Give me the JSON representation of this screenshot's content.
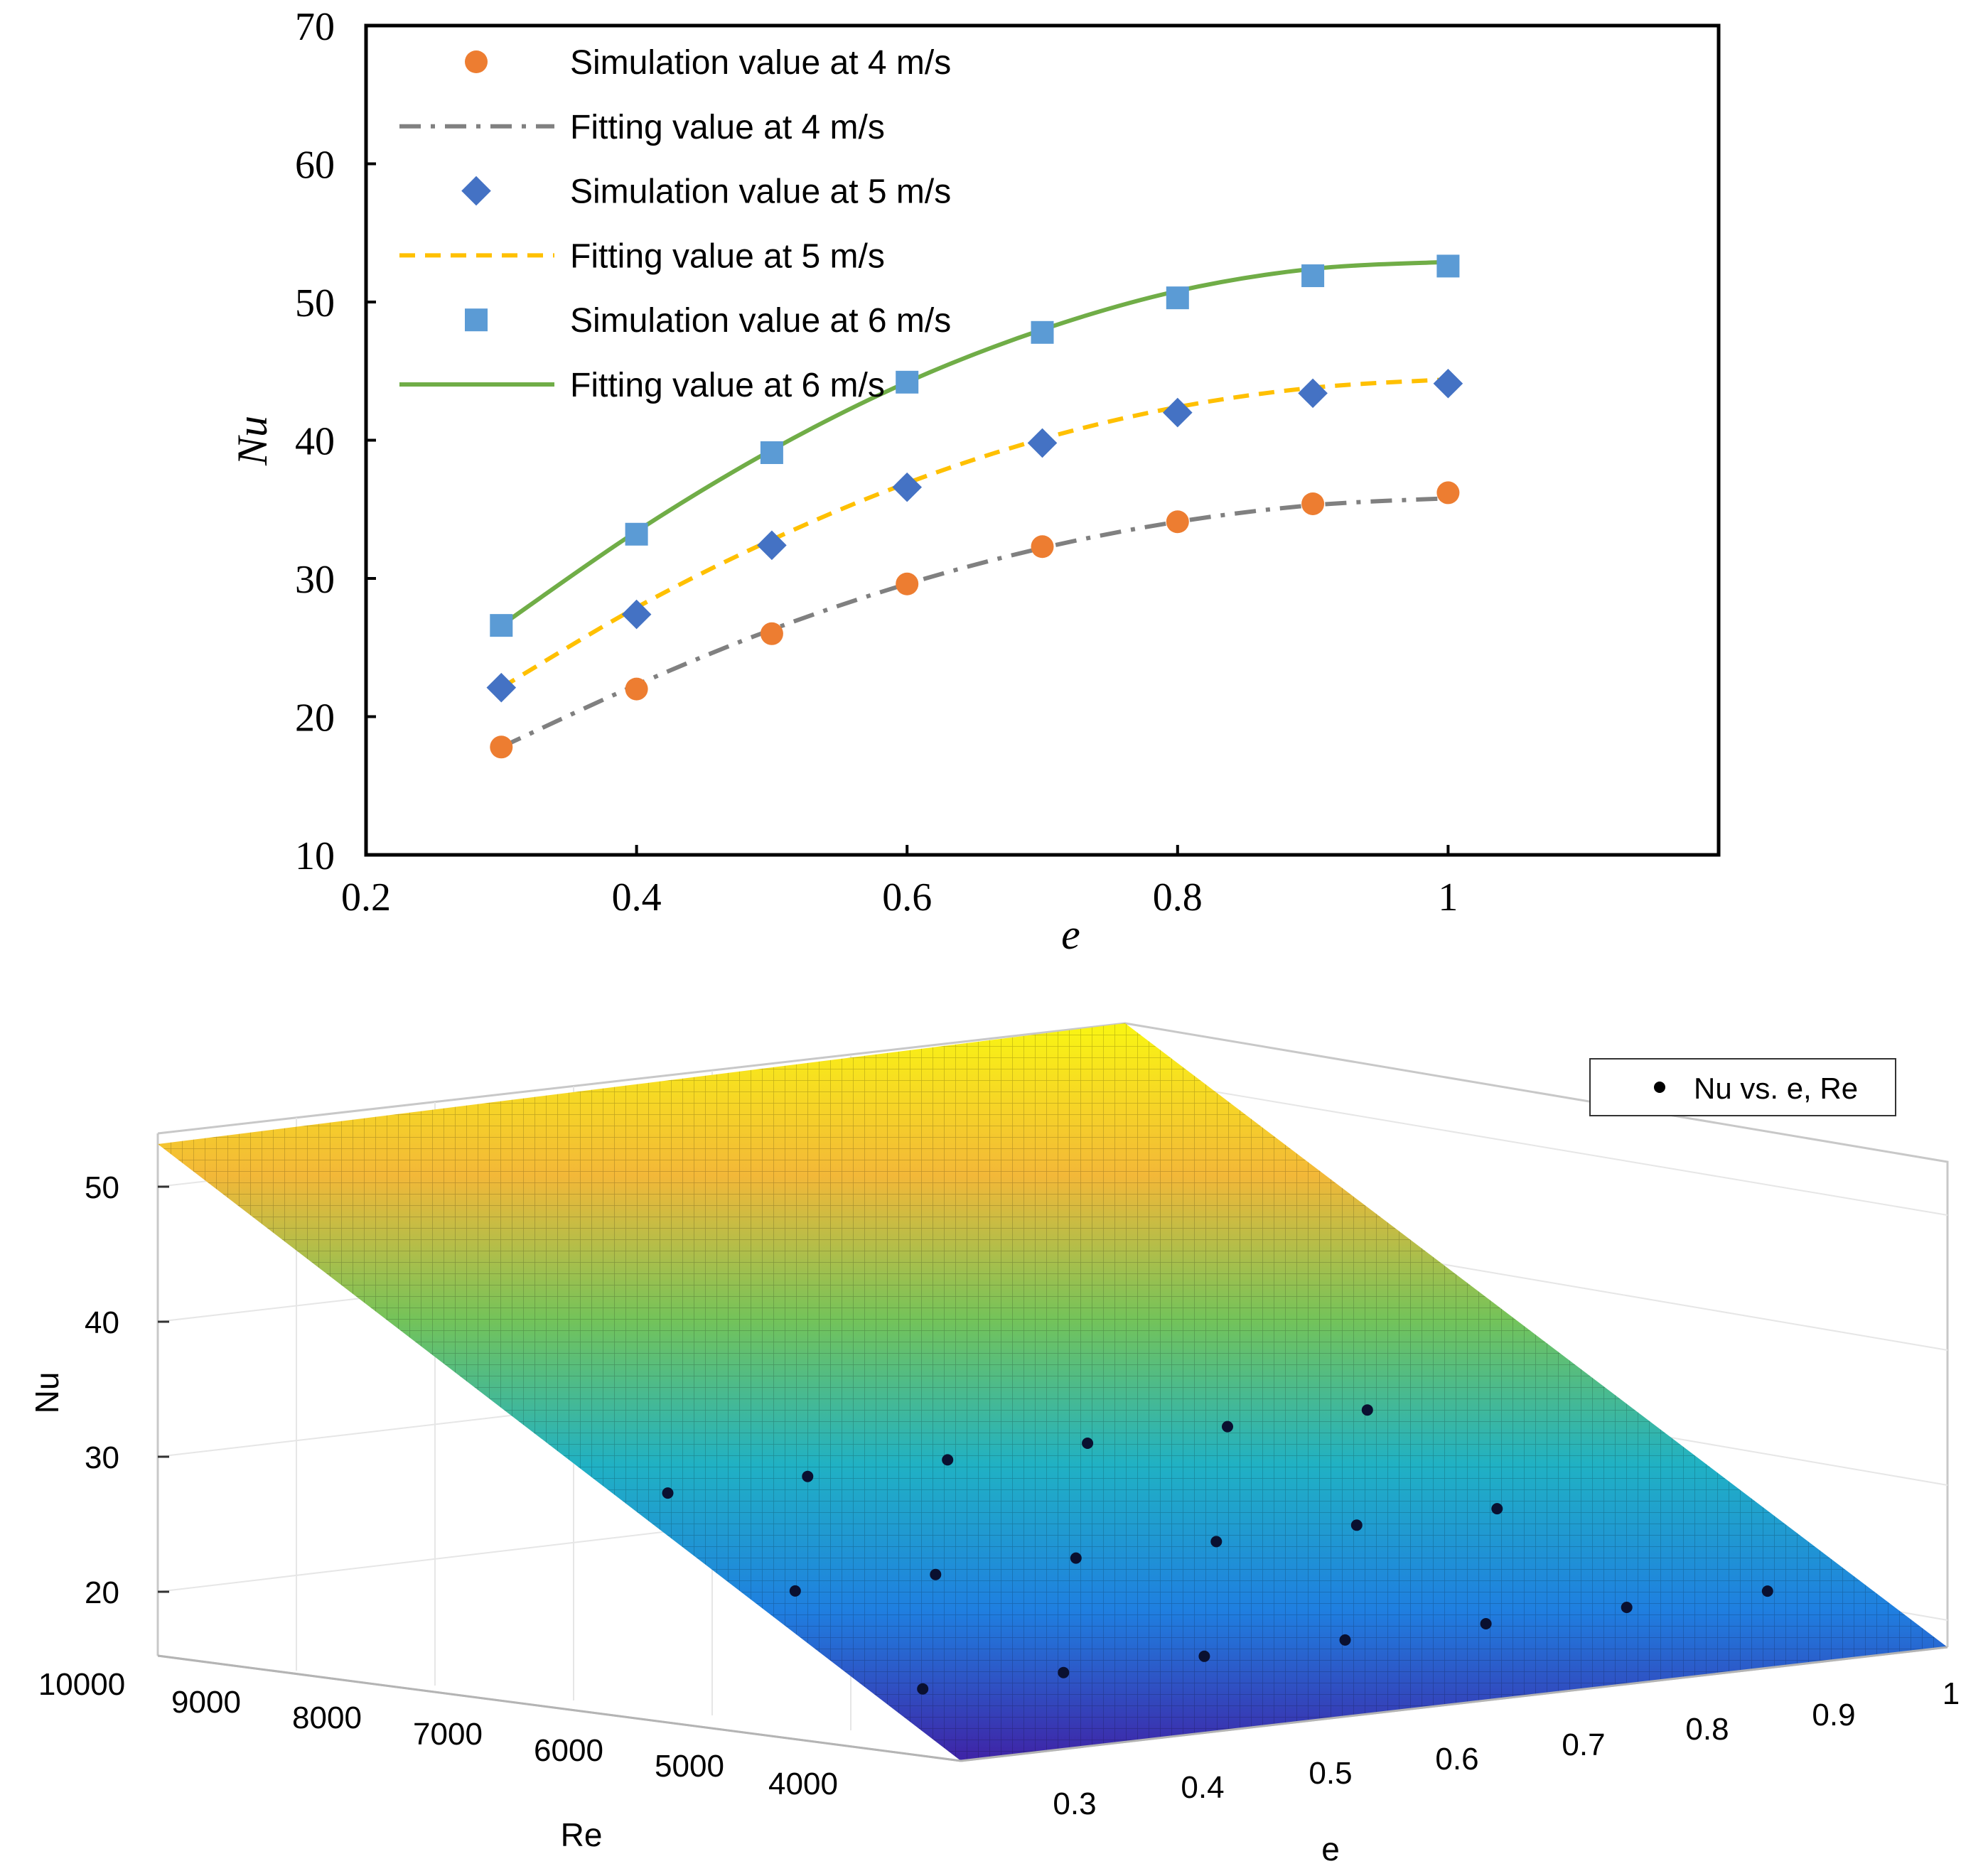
{
  "chart_data": [
    {
      "type": "line",
      "title": "",
      "xlabel": "e",
      "ylabel": "Nu",
      "xlim": [
        0.2,
        1.2
      ],
      "ylim": [
        10,
        70
      ],
      "xticks": [
        0.2,
        0.4,
        0.6,
        0.8,
        1
      ],
      "xtick_labels": [
        "0.2",
        "0.4",
        "0.6",
        "0.8",
        "1"
      ],
      "yticks": [
        10,
        20,
        30,
        40,
        50,
        60,
        70
      ],
      "ytick_labels": [
        "10",
        "20",
        "30",
        "40",
        "50",
        "60",
        "70"
      ],
      "grid": false,
      "legend_position": "top-left",
      "x": [
        0.3,
        0.4,
        0.5,
        0.6,
        0.7,
        0.8,
        0.9,
        1.0
      ],
      "series": [
        {
          "name": "Simulation value at 4 m/s",
          "kind": "scatter",
          "marker": "circle",
          "color": "#ED7D31",
          "values": [
            17.8,
            22.0,
            26.0,
            29.6,
            32.3,
            34.1,
            35.4,
            36.2
          ]
        },
        {
          "name": "Fitting value at 4 m/s",
          "kind": "line",
          "dash": "dashdot",
          "color": "#808080",
          "values": [
            17.8,
            22.3,
            26.3,
            29.6,
            32.2,
            34.1,
            35.3,
            35.8
          ]
        },
        {
          "name": "Simulation value at 5 m/s",
          "kind": "scatter",
          "marker": "diamond",
          "color": "#4472C4",
          "values": [
            22.1,
            27.4,
            32.4,
            36.6,
            39.8,
            42.0,
            43.4,
            44.1
          ]
        },
        {
          "name": "Fitting value at 5 m/s",
          "kind": "line",
          "dash": "dash",
          "color": "#FFC000",
          "values": [
            22.1,
            27.9,
            32.8,
            36.9,
            40.1,
            42.4,
            43.8,
            44.4
          ]
        },
        {
          "name": "Simulation value at 6 m/s",
          "kind": "scatter",
          "marker": "square",
          "color": "#5B9BD5",
          "values": [
            26.6,
            33.2,
            39.1,
            44.2,
            47.8,
            50.3,
            51.9,
            52.6
          ]
        },
        {
          "name": "Fitting value at 6 m/s",
          "kind": "line",
          "dash": "solid",
          "color": "#70AD47",
          "values": [
            26.6,
            33.4,
            39.3,
            44.2,
            48.0,
            50.8,
            52.4,
            52.9
          ]
        }
      ]
    },
    {
      "type": "surface",
      "title": "",
      "xlabel": "e",
      "ylabel": "Re",
      "zlabel": "Nu",
      "xlim": [
        0.25,
        1.0
      ],
      "ylim": [
        3500,
        10000
      ],
      "zlim": [
        15,
        55
      ],
      "xtick_labels": [
        "0.3",
        "0.4",
        "0.5",
        "0.6",
        "0.7",
        "0.8",
        "0.9",
        "1"
      ],
      "ytick_labels": [
        "10000",
        "9000",
        "8000",
        "7000",
        "6000",
        "5000",
        "4000"
      ],
      "ztick_labels": [
        "20",
        "30",
        "40",
        "50"
      ],
      "legend_position": "top-right",
      "legend": [
        "Nu vs. e, Re"
      ],
      "colormap": [
        "#3E26A8",
        "#1F7FE0",
        "#20B1C4",
        "#73C35A",
        "#F3B838",
        "#F9F314"
      ],
      "surface_corners_nu": {
        "e_min_re_max": 52.6,
        "e_max_re_max": 52.9,
        "e_min_re_min": 17.8,
        "e_max_re_min": 36.0
      },
      "points": [
        {
          "e": 0.3,
          "re": 4000,
          "nu": 17.8
        },
        {
          "e": 0.4,
          "re": 4000,
          "nu": 22.0
        },
        {
          "e": 0.5,
          "re": 4000,
          "nu": 26.0
        },
        {
          "e": 0.6,
          "re": 4000,
          "nu": 29.6
        },
        {
          "e": 0.7,
          "re": 4000,
          "nu": 32.3
        },
        {
          "e": 0.8,
          "re": 4000,
          "nu": 34.1
        },
        {
          "e": 0.9,
          "re": 4000,
          "nu": 35.4
        },
        {
          "e": 0.3,
          "re": 5000,
          "nu": 22.1
        },
        {
          "e": 0.4,
          "re": 5000,
          "nu": 27.4
        },
        {
          "e": 0.5,
          "re": 5000,
          "nu": 32.4
        },
        {
          "e": 0.6,
          "re": 5000,
          "nu": 36.6
        },
        {
          "e": 0.7,
          "re": 5000,
          "nu": 39.8
        },
        {
          "e": 0.8,
          "re": 5000,
          "nu": 42.0
        },
        {
          "e": 0.3,
          "re": 6000,
          "nu": 26.6
        },
        {
          "e": 0.4,
          "re": 6000,
          "nu": 33.2
        },
        {
          "e": 0.5,
          "re": 6000,
          "nu": 39.1
        },
        {
          "e": 0.6,
          "re": 6000,
          "nu": 44.2
        },
        {
          "e": 0.7,
          "re": 6000,
          "nu": 47.8
        },
        {
          "e": 0.8,
          "re": 6000,
          "nu": 50.3
        }
      ]
    }
  ]
}
